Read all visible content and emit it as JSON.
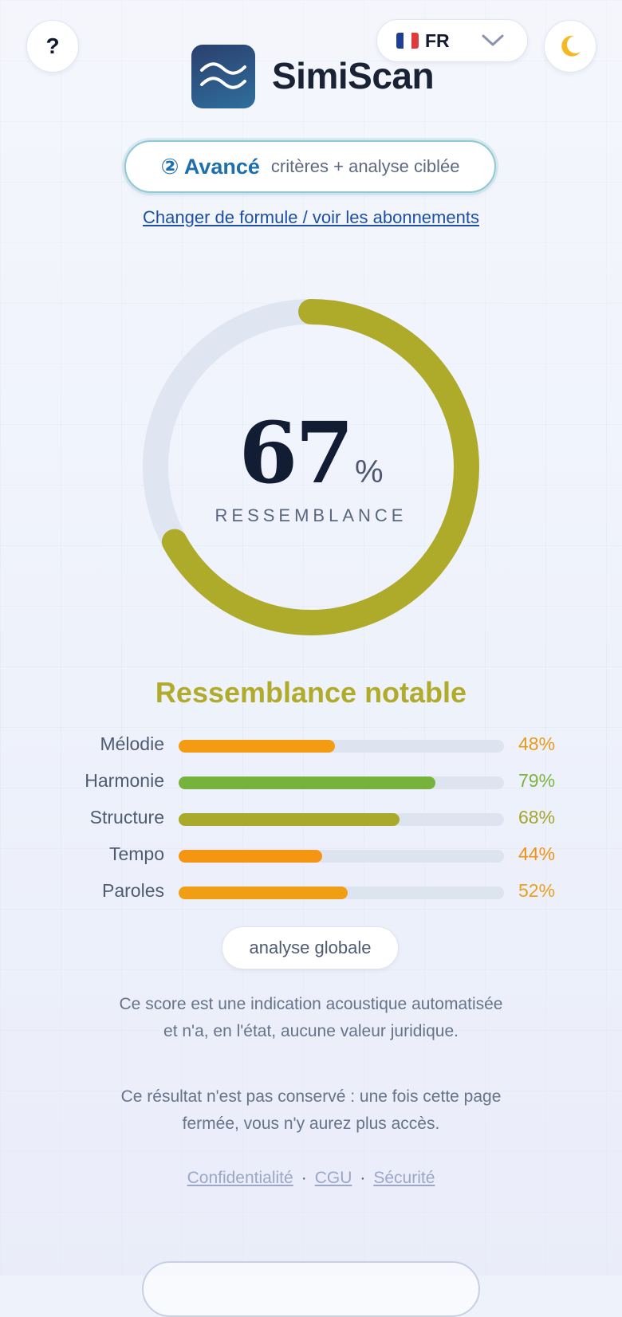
{
  "header": {
    "help_label": "?",
    "language": {
      "flag": "french-flag-icon",
      "code": "FR"
    },
    "theme_icon": "moon-icon",
    "app_name": "SimiScan",
    "logo_icon": "waves-icon"
  },
  "plan": {
    "name": "② Avancé",
    "description": "critères + analyse ciblée",
    "change_link": "Changer de formule / voir les abonnements"
  },
  "result": {
    "score": "67",
    "score_unit": "%",
    "score_value": 67,
    "score_label": "RESSEMBLANCE",
    "verdict": "Ressemblance notable",
    "colors": {
      "score": "#aeaa2a",
      "track": "#dfe6f2"
    }
  },
  "criteria": [
    {
      "label": "Mélodie",
      "value": 48,
      "text": "48%",
      "color": "#f39b12",
      "text_color": "#e89a18"
    },
    {
      "label": "Harmonie",
      "value": 79,
      "text": "79%",
      "color": "#76b33c",
      "text_color": "#7fb340"
    },
    {
      "label": "Structure",
      "value": 68,
      "text": "68%",
      "color": "#a9aa2a",
      "text_color": "#a4a52c"
    },
    {
      "label": "Tempo",
      "value": 44,
      "text": "44%",
      "color": "#f59613",
      "text_color": "#ec9416"
    },
    {
      "label": "Paroles",
      "value": 52,
      "text": "52%",
      "color": "#f09f15",
      "text_color": "#e9a11c"
    }
  ],
  "actions": {
    "global_analysis": "analyse globale"
  },
  "notes": {
    "disclaimer_line1": "Ce score est une indication acoustique automatisée",
    "disclaimer_line2": "et n'a, en l'état, aucune valeur juridique.",
    "retention_line1": "Ce résultat n'est pas conservé : une fois cette page",
    "retention_line2": "fermée, vous n'y aurez plus accès."
  },
  "footer": {
    "links": [
      "Confidentialité",
      "CGU",
      "Sécurité"
    ],
    "separator": "·"
  }
}
